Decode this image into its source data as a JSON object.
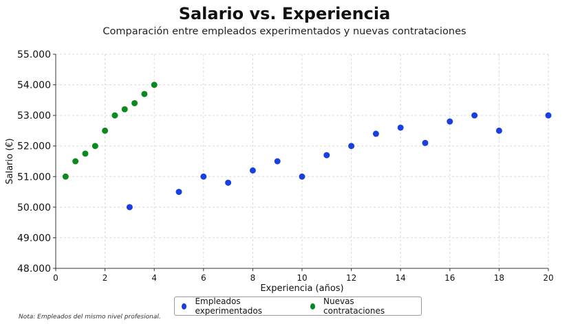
{
  "chart_data": {
    "type": "scatter",
    "title": "Salario vs. Experiencia",
    "subtitle": "Comparación entre empleados experimentados y nuevas contrataciones",
    "xlabel": "Experiencia (años)",
    "ylabel": "Salario (€)",
    "xlim": [
      0,
      20
    ],
    "ylim": [
      48000,
      55000
    ],
    "x_ticks": [
      0,
      2,
      4,
      6,
      8,
      10,
      12,
      14,
      16,
      18,
      20
    ],
    "y_ticks": [
      48000,
      49000,
      50000,
      51000,
      52000,
      53000,
      54000,
      55000
    ],
    "x_tick_labels": [
      "0",
      "2",
      "4",
      "6",
      "8",
      "10",
      "12",
      "14",
      "16",
      "18",
      "20"
    ],
    "y_tick_labels": [
      "48.000",
      "49.000",
      "50.000",
      "51.000",
      "52.000",
      "53.000",
      "54.000",
      "55.000"
    ],
    "grid": true,
    "legend_position": "bottom-center",
    "series": [
      {
        "name": "Empleados experimentados",
        "color": "#1a3fe0",
        "points": [
          {
            "x": 3,
            "y": 50000
          },
          {
            "x": 5,
            "y": 50500
          },
          {
            "x": 6,
            "y": 51000
          },
          {
            "x": 7,
            "y": 50800
          },
          {
            "x": 8,
            "y": 51200
          },
          {
            "x": 9,
            "y": 51500
          },
          {
            "x": 10,
            "y": 51000
          },
          {
            "x": 11,
            "y": 51700
          },
          {
            "x": 12,
            "y": 52000
          },
          {
            "x": 13,
            "y": 52400
          },
          {
            "x": 14,
            "y": 52600
          },
          {
            "x": 15,
            "y": 52100
          },
          {
            "x": 16,
            "y": 52800
          },
          {
            "x": 17,
            "y": 53000
          },
          {
            "x": 18,
            "y": 52500
          },
          {
            "x": 20,
            "y": 53000
          }
        ]
      },
      {
        "name": "Nuevas contrataciones",
        "color": "#0a8a1e",
        "points": [
          {
            "x": 0.4,
            "y": 51000
          },
          {
            "x": 0.8,
            "y": 51500
          },
          {
            "x": 1.2,
            "y": 51750
          },
          {
            "x": 1.6,
            "y": 52000
          },
          {
            "x": 2.0,
            "y": 52500
          },
          {
            "x": 2.4,
            "y": 53000
          },
          {
            "x": 2.8,
            "y": 53200
          },
          {
            "x": 3.2,
            "y": 53400
          },
          {
            "x": 3.6,
            "y": 53700
          },
          {
            "x": 4.0,
            "y": 54000
          }
        ]
      }
    ]
  },
  "note": "Nota: Empleados del mismo nivel profesional."
}
